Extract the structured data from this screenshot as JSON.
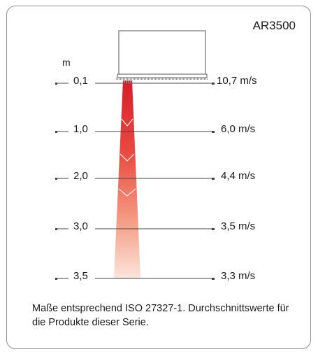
{
  "model": "AR3500",
  "distance_unit": "m",
  "rows": [
    {
      "distance": "0,1",
      "velocity": "10,7 m/s"
    },
    {
      "distance": "1,0",
      "velocity": "6,0 m/s"
    },
    {
      "distance": "2,0",
      "velocity": "4,4 m/s"
    },
    {
      "distance": "3,0",
      "velocity": "3,5 m/s"
    },
    {
      "distance": "3,5",
      "velocity": "3,3 m/s"
    }
  ],
  "caption": "Maße entsprechend ISO 27327-1. Durchschnittswerte für die Produkte dieser Serie.",
  "colors": {
    "airflow_top": "#d81e2a",
    "airflow_bottom": "#fbe5dc",
    "lines": "#444444"
  }
}
